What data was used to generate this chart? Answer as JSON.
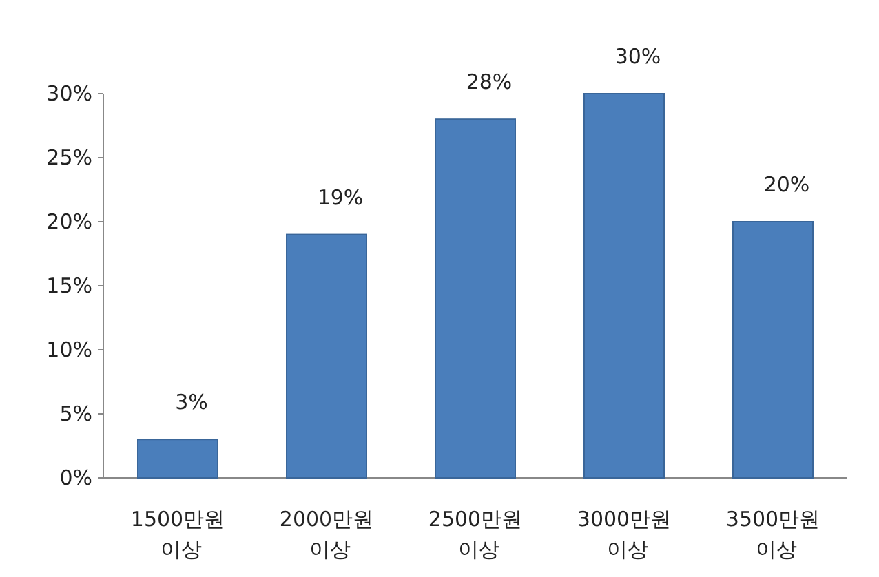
{
  "chart_data": {
    "type": "bar",
    "categories": [
      "1500만원 이상",
      "2000만원 이상",
      "2500만원 이상",
      "3000만원 이상",
      "3500만원 이상"
    ],
    "values": [
      3,
      19,
      28,
      30,
      20
    ],
    "color": "#4a7ebb",
    "ylim": [
      0,
      30
    ],
    "yticks": [
      {
        "value": 0,
        "label": "0%"
      },
      {
        "value": 5,
        "label": "5%"
      },
      {
        "value": 10,
        "label": "10%"
      },
      {
        "value": 15,
        "label": "15%"
      },
      {
        "value": 20,
        "label": "20%"
      },
      {
        "value": 25,
        "label": "25%"
      },
      {
        "value": 30,
        "label": "30%"
      }
    ],
    "value_labels": [
      "3%",
      "19%",
      "28%",
      "30%",
      "20%"
    ]
  }
}
